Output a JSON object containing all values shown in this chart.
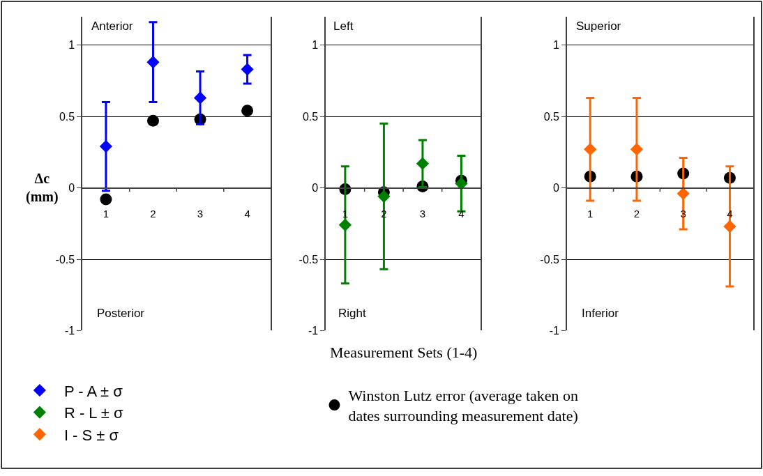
{
  "chart_data": [
    {
      "type": "scatter",
      "ylabel": "Δc\n(mm)",
      "annotations": [
        "Anterior",
        "Posterior"
      ],
      "categories": [
        "1",
        "2",
        "3",
        "4"
      ],
      "ylim": [
        -1,
        1.2
      ],
      "yticks": [
        -1,
        -0.5,
        0,
        0.5,
        1
      ],
      "grid": "y",
      "legend": "bottom",
      "series": [
        {
          "name": "P - A ± σ",
          "color": "#0000ff",
          "marker": "diamond",
          "values": [
            0.29,
            0.88,
            0.63,
            0.83
          ],
          "errors": [
            0.31,
            0.28,
            0.185,
            0.1
          ]
        },
        {
          "name": "Winston Lutz error (average taken on\ndates surrounding measurement date)",
          "color": "#000000",
          "marker": "circle",
          "values": [
            -0.08,
            0.47,
            0.48,
            0.54
          ]
        }
      ]
    },
    {
      "type": "scatter",
      "xlabel": "Measurement Sets (1-4)",
      "annotations": [
        "Left",
        "Right"
      ],
      "categories": [
        "1",
        "2",
        "3",
        "4"
      ],
      "ylim": [
        -1,
        1.2
      ],
      "yticks": [
        -1,
        -0.5,
        0,
        0.5,
        1
      ],
      "grid": "y",
      "legend": "bottom",
      "series": [
        {
          "name": "R - L ± σ",
          "color": "#008000",
          "marker": "diamond",
          "values": [
            -0.26,
            -0.06,
            0.17,
            0.03
          ],
          "errors": [
            0.41,
            0.51,
            0.165,
            0.195
          ]
        },
        {
          "color": "#000000",
          "marker": "circle",
          "values": [
            -0.01,
            -0.03,
            0.01,
            0.05
          ]
        }
      ]
    },
    {
      "type": "scatter",
      "annotations": [
        "Superior",
        "Inferior"
      ],
      "categories": [
        "1",
        "2",
        "3",
        "4"
      ],
      "ylim": [
        -1,
        1.2
      ],
      "yticks": [
        -1,
        -0.5,
        0,
        0.5,
        1
      ],
      "grid": "y",
      "legend": "bottom",
      "series": [
        {
          "name": "I - S ± σ",
          "color": "#ff6600",
          "marker": "diamond",
          "values": [
            0.27,
            0.27,
            -0.04,
            -0.27
          ],
          "errors": [
            0.36,
            0.36,
            0.25,
            0.42
          ]
        },
        {
          "color": "#000000",
          "marker": "circle",
          "values": [
            0.08,
            0.08,
            0.1,
            0.07
          ]
        }
      ]
    }
  ]
}
